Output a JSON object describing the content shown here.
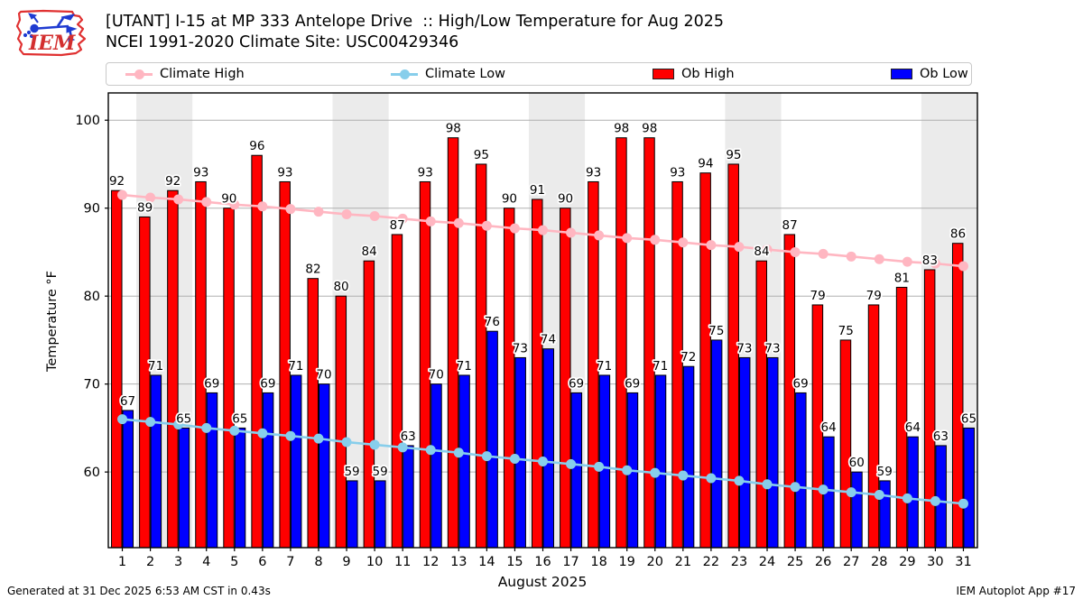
{
  "header": {
    "title_line1": "[UTANT] I-15 at MP 333 Antelope Drive  :: High/Low Temperature for Aug 2025",
    "title_line2": "NCEI 1991-2020 Climate Site: USC00429346",
    "logo_text": "IEM"
  },
  "legend": {
    "entries": [
      {
        "label": "Climate High",
        "type": "line",
        "color": "#ffb6c1"
      },
      {
        "label": "Climate Low",
        "type": "line",
        "color": "#87ceeb"
      },
      {
        "label": "Ob High",
        "type": "bar",
        "color": "#ff0000"
      },
      {
        "label": "Ob Low",
        "type": "bar",
        "color": "#0000ff"
      }
    ]
  },
  "chart_data": {
    "type": "bar",
    "title": "[UTANT] I-15 at MP 333 Antelope Drive :: High/Low Temperature for Aug 2025",
    "subtitle": "NCEI 1991-2020 Climate Site: USC00429346",
    "xlabel": "August 2025",
    "ylabel": "Temperature °F",
    "categories": [
      1,
      2,
      3,
      4,
      5,
      6,
      7,
      8,
      9,
      10,
      11,
      12,
      13,
      14,
      15,
      16,
      17,
      18,
      19,
      20,
      21,
      22,
      23,
      24,
      25,
      26,
      27,
      28,
      29,
      30,
      31
    ],
    "yticks": [
      60,
      70,
      80,
      90,
      100
    ],
    "ylim": [
      51.4,
      103.1
    ],
    "grid": "horizontal",
    "legend_position": "top",
    "weekend_shading_days": [
      [
        2,
        3
      ],
      [
        9,
        10
      ],
      [
        16,
        17
      ],
      [
        23,
        24
      ],
      [
        30,
        31
      ]
    ],
    "series": [
      {
        "name": "Ob High",
        "type": "bar",
        "color": "#ff0000",
        "values": [
          92,
          89,
          92,
          93,
          90,
          96,
          93,
          82,
          80,
          84,
          87,
          93,
          98,
          95,
          90,
          91,
          90,
          93,
          98,
          98,
          93,
          94,
          95,
          84,
          87,
          79,
          75,
          79,
          81,
          83,
          86
        ]
      },
      {
        "name": "Ob Low",
        "type": "bar",
        "color": "#0000ff",
        "values": [
          67,
          71,
          65,
          69,
          65,
          69,
          71,
          70,
          59,
          59,
          63,
          70,
          71,
          76,
          73,
          74,
          69,
          71,
          69,
          71,
          72,
          75,
          73,
          73,
          69,
          64,
          60,
          59,
          64,
          63,
          65
        ]
      },
      {
        "name": "Climate High",
        "type": "line",
        "color": "#ffb6c1",
        "values": [
          91.5,
          91.2,
          91.0,
          90.7,
          90.4,
          90.2,
          89.9,
          89.6,
          89.3,
          89.1,
          88.8,
          88.5,
          88.3,
          88.0,
          87.7,
          87.5,
          87.2,
          86.9,
          86.6,
          86.4,
          86.1,
          85.8,
          85.6,
          85.3,
          85.0,
          84.8,
          84.5,
          84.2,
          83.9,
          83.7,
          83.4
        ]
      },
      {
        "name": "Climate Low",
        "type": "line",
        "color": "#87ceeb",
        "values": [
          66.0,
          65.7,
          65.4,
          65.0,
          64.7,
          64.4,
          64.1,
          63.8,
          63.4,
          63.1,
          62.8,
          62.5,
          62.2,
          61.8,
          61.5,
          61.2,
          60.9,
          60.6,
          60.2,
          59.9,
          59.6,
          59.3,
          59.0,
          58.6,
          58.3,
          58.0,
          57.7,
          57.4,
          57.0,
          56.7,
          56.4
        ]
      }
    ]
  },
  "footer": {
    "left": "Generated at 31 Dec 2025 6:53 AM CST in 0.43s",
    "right": "IEM Autoplot App #17"
  }
}
